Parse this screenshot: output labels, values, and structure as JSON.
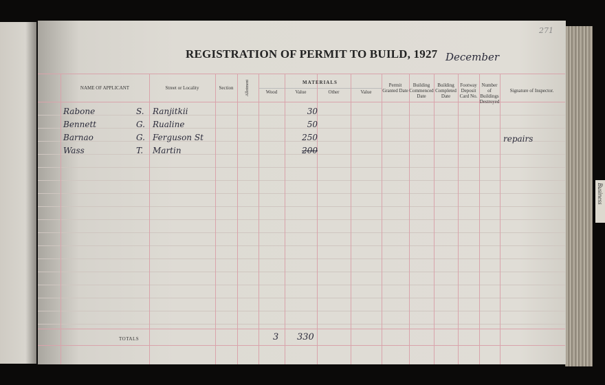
{
  "page_number": "271",
  "title": "REGISTRATION OF PERMIT TO BUILD, 1927",
  "month": "December",
  "side_tab": "Business",
  "columns": {
    "name": "NAME OF APPLICANT",
    "street": "Street or Locality",
    "section": "Section",
    "allotment": "Allotment",
    "materials": "MATERIALS",
    "wood": "Wood",
    "value1": "Value",
    "other": "Other",
    "value2": "Value",
    "permit_granted": "Permit Granted Date",
    "commenced": "Building Commenced Date",
    "completed": "Building Completed Date",
    "footway": "Footway Deposit Card No.",
    "destroyed": "Number of Buildings Destroyed",
    "signature": "Signature of Inspector."
  },
  "rows": [
    {
      "name": "Rabone",
      "initial": "S.",
      "street": "Ranjitkii",
      "value": "30",
      "signature": ""
    },
    {
      "name": "Bennett",
      "initial": "G.",
      "street": "Rualine",
      "value": "50",
      "signature": ""
    },
    {
      "name": "Barnao",
      "initial": "G.",
      "street": "Ferguson St",
      "value": "250",
      "signature": "repairs"
    },
    {
      "name": "Wass",
      "initial": "T.",
      "street": "Martin",
      "value": "200",
      "signature": "",
      "struck": true
    }
  ],
  "totals": {
    "label": "TOTALS",
    "wood": "3",
    "value": "330"
  }
}
